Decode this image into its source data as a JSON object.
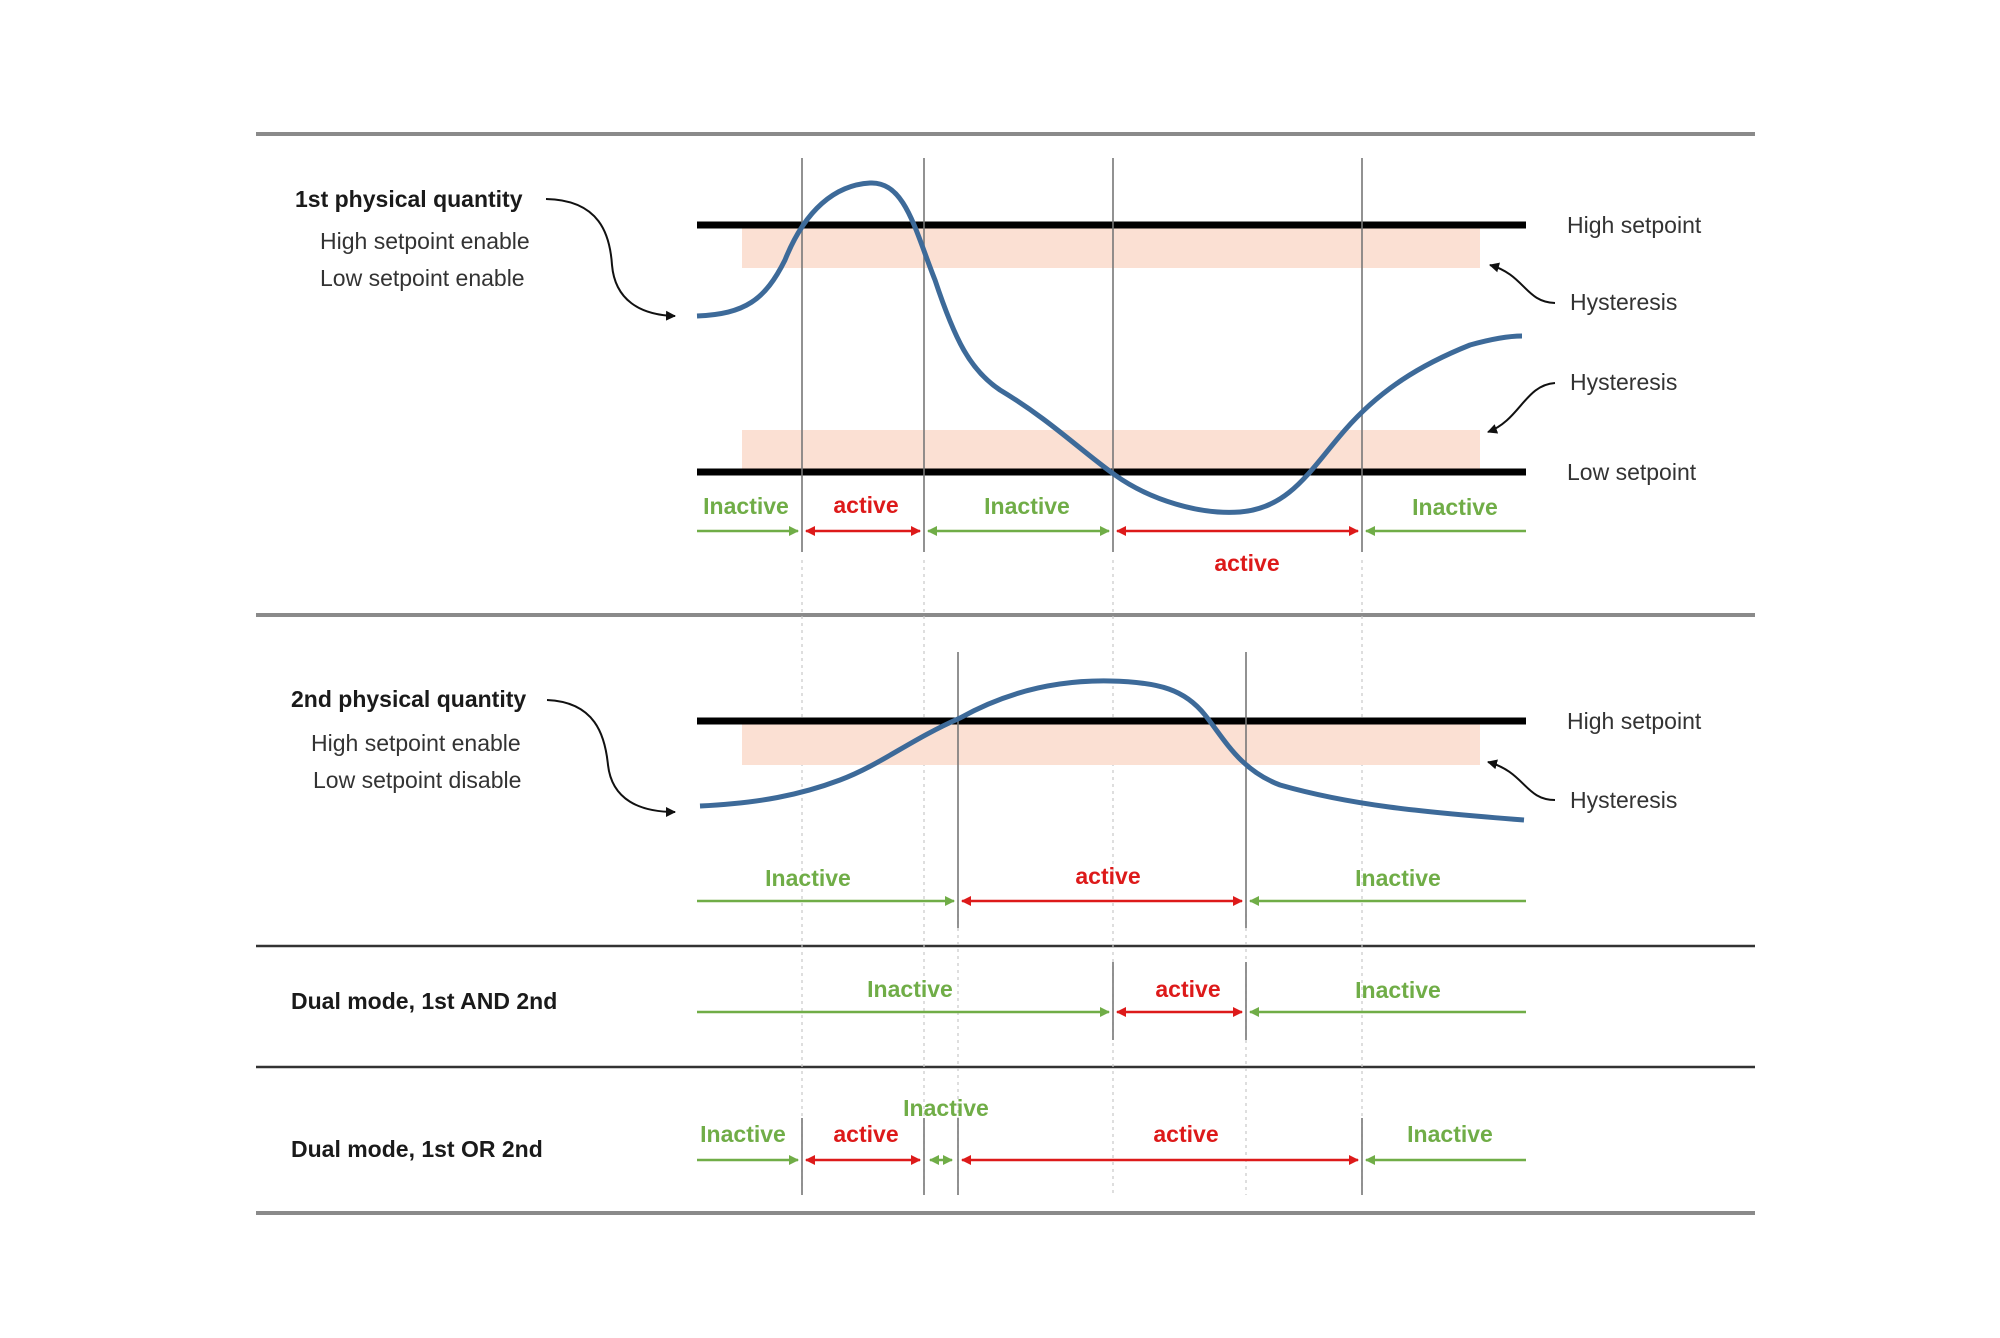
{
  "colors": {
    "curve": "#3d6a99",
    "setpoint": "#000000",
    "hysteresis_band": "#fbe0d3",
    "inactive": "#70ad47",
    "active": "#dd1a1a",
    "divider": "#8a8a8a",
    "marker": "#777777",
    "guide": "#c8c8c8"
  },
  "panels": {
    "first": {
      "title": "1st physical quantity",
      "line1": "High setpoint enable",
      "line2": "Low setpoint enable",
      "high_setpoint_label": "High setpoint",
      "low_setpoint_label": "Low setpoint",
      "hysteresis_upper_label": "Hysteresis",
      "hysteresis_lower_label": "Hysteresis",
      "states": [
        {
          "text": "Inactive",
          "kind": "inactive"
        },
        {
          "text": "active",
          "kind": "active"
        },
        {
          "text": "Inactive",
          "kind": "inactive"
        },
        {
          "text": "active",
          "kind": "active"
        },
        {
          "text": "Inactive",
          "kind": "inactive"
        }
      ]
    },
    "second": {
      "title": "2nd physical quantity",
      "line1": "High setpoint enable",
      "line2": "Low setpoint disable",
      "high_setpoint_label": "High setpoint",
      "hysteresis_label": "Hysteresis",
      "states": [
        {
          "text": "Inactive",
          "kind": "inactive"
        },
        {
          "text": "active",
          "kind": "active"
        },
        {
          "text": "Inactive",
          "kind": "inactive"
        }
      ]
    },
    "and_mode": {
      "title": "Dual mode, 1st AND 2nd",
      "states": [
        {
          "text": "Inactive",
          "kind": "inactive"
        },
        {
          "text": "active",
          "kind": "active"
        },
        {
          "text": "Inactive",
          "kind": "inactive"
        }
      ]
    },
    "or_mode": {
      "title": "Dual mode, 1st OR 2nd",
      "states": [
        {
          "text": "Inactive",
          "kind": "inactive"
        },
        {
          "text": "active",
          "kind": "active"
        },
        {
          "text": "Inactive",
          "kind": "inactive"
        },
        {
          "text": "active",
          "kind": "active"
        },
        {
          "text": "Inactive",
          "kind": "inactive"
        }
      ]
    }
  }
}
